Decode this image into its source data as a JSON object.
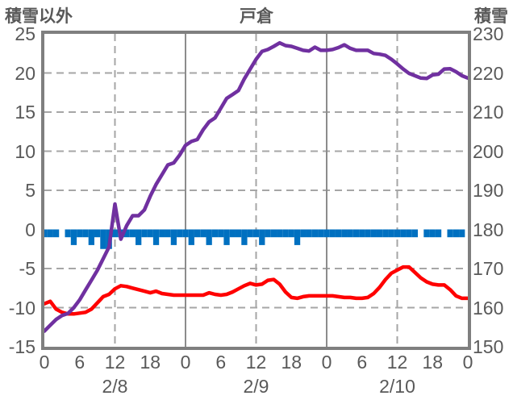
{
  "title": "戸倉",
  "left_axis": {
    "label": "積雪以外",
    "min": -15,
    "max": 25,
    "ticks": [
      25,
      20,
      15,
      10,
      5,
      0,
      -5,
      -10,
      -15
    ]
  },
  "right_axis": {
    "label": "積雪",
    "min": 150,
    "max": 230,
    "ticks": [
      230,
      220,
      210,
      200,
      190,
      180,
      170,
      160,
      150
    ]
  },
  "x_axis": {
    "hours_total": 72,
    "hour_tick_labels": [
      "0",
      "6",
      "12",
      "18",
      "0",
      "6",
      "12",
      "18",
      "0",
      "6",
      "12",
      "18",
      "0"
    ],
    "date_labels": [
      {
        "label": "2/8",
        "center_hour": 12
      },
      {
        "label": "2/9",
        "center_hour": 36
      },
      {
        "label": "2/10",
        "center_hour": 60
      }
    ]
  },
  "colors": {
    "snow_line": "#7030A0",
    "red_line": "#FF0000",
    "bars": "#0070C0",
    "frame": "#7F7F7F",
    "grid": "#A6A6A6",
    "text": "#595959"
  },
  "grid": {
    "horizontal_dashed_left_values": [
      20,
      15,
      10,
      5,
      -5,
      -10
    ],
    "vertical_lines": [
      {
        "hour": 12,
        "dashed": true
      },
      {
        "hour": 24,
        "dashed": false
      },
      {
        "hour": 36,
        "dashed": true
      },
      {
        "hour": 48,
        "dashed": false
      },
      {
        "hour": 60,
        "dashed": true
      }
    ]
  },
  "chart_data": {
    "type": "line+bar",
    "title": "戸倉",
    "x_unit": "hour (0-72, hourly over 2/8-2/10)",
    "series": [
      {
        "name": "snow-depth-purple-line",
        "axis": "right",
        "type": "line",
        "color": "#7030A0",
        "values": [
          154,
          155.5,
          157,
          158,
          158.5,
          160,
          162,
          164.5,
          167,
          169.5,
          172.5,
          175.5,
          186.5,
          177.5,
          181,
          183.5,
          183.5,
          185,
          188.5,
          191.5,
          194,
          196.5,
          197,
          199,
          201.5,
          202.5,
          203,
          205.5,
          207.5,
          208.5,
          211,
          213.5,
          214.5,
          215.5,
          218.5,
          221,
          223.5,
          225.5,
          226,
          226.8,
          227.7,
          227,
          226.8,
          226.3,
          225.8,
          225.6,
          226.6,
          225.8,
          225.8,
          226,
          226.5,
          227.2,
          226.3,
          225.8,
          225.8,
          225.8,
          225,
          224.8,
          224.5,
          223.5,
          222.3,
          221,
          219.9,
          219.3,
          218.7,
          218.6,
          219.5,
          219.7,
          221,
          221.1,
          220.3,
          219.3,
          218.7
        ]
      },
      {
        "name": "red-line",
        "axis": "left",
        "type": "line",
        "color": "#FF0000",
        "values": [
          -9.5,
          -9.2,
          -10.2,
          -10.6,
          -10.8,
          -10.8,
          -10.7,
          -10.6,
          -10.2,
          -9.4,
          -8.6,
          -8.3,
          -7.6,
          -7.2,
          -7.3,
          -7.5,
          -7.7,
          -7.9,
          -8.1,
          -7.9,
          -8.2,
          -8.3,
          -8.4,
          -8.4,
          -8.4,
          -8.4,
          -8.4,
          -8.4,
          -8.1,
          -8.3,
          -8.4,
          -8.3,
          -8.0,
          -7.6,
          -7.2,
          -6.9,
          -7.1,
          -7.0,
          -6.5,
          -6.4,
          -7.0,
          -8.0,
          -8.7,
          -8.8,
          -8.6,
          -8.5,
          -8.5,
          -8.5,
          -8.5,
          -8.5,
          -8.6,
          -8.7,
          -8.7,
          -8.8,
          -8.8,
          -8.7,
          -8.2,
          -7.4,
          -6.4,
          -5.6,
          -5.2,
          -4.8,
          -4.8,
          -5.5,
          -6.2,
          -6.7,
          -7.0,
          -7.1,
          -7.1,
          -7.7,
          -8.5,
          -8.8,
          -8.8
        ]
      },
      {
        "name": "blue-bars",
        "axis": "left",
        "type": "bar",
        "color": "#0070C0",
        "note": "bars hang downward from 0",
        "values": [
          1,
          1,
          1,
          0,
          1,
          2,
          1,
          1,
          2,
          1,
          2.5,
          2.5,
          1,
          1,
          1,
          1,
          2,
          1,
          1,
          2,
          1,
          1,
          2,
          1,
          1,
          2,
          1,
          1,
          2,
          1,
          1,
          2,
          1,
          1,
          2,
          1,
          1,
          2,
          1,
          1,
          1,
          1,
          1,
          2,
          1,
          1,
          1,
          1,
          1,
          1,
          1,
          1,
          1,
          1,
          1,
          1,
          1,
          1,
          1,
          1,
          1,
          1,
          1,
          1,
          0,
          1,
          1,
          1,
          0,
          1,
          1,
          1
        ]
      }
    ]
  }
}
